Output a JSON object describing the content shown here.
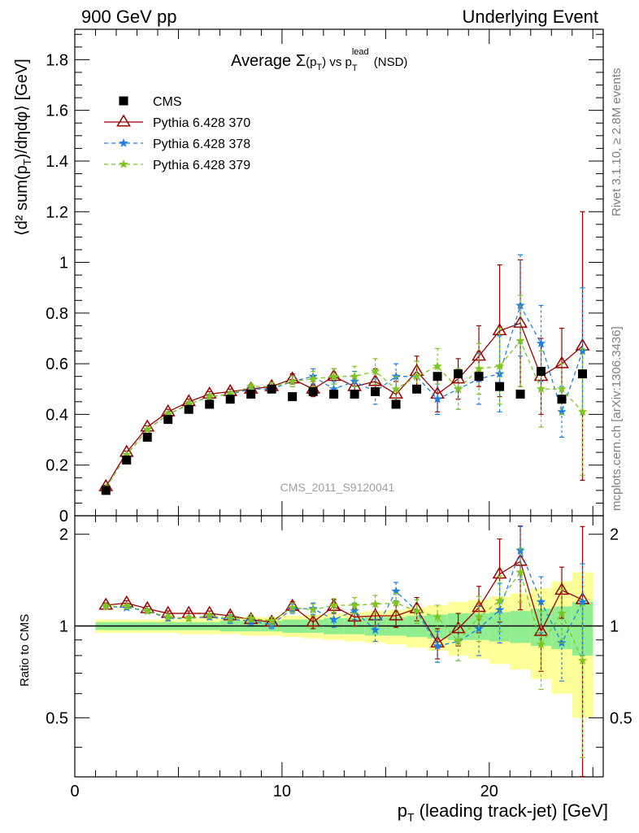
{
  "header": {
    "left": "900 GeV pp",
    "right": "Underlying Event"
  },
  "side": {
    "rivet": "Rivet 3.1.10, ≥ 2.8M events",
    "mcplots": "mcplots.cern.ch [arXiv:1306.3436]"
  },
  "watermark": "CMS_2011_S9120041",
  "title": {
    "prefix": "Average",
    "sigma": "Σ",
    "arg": "(p",
    "argsub": "T",
    "argclose": ")",
    "mid": " vs p",
    "sub": "T",
    "sup": "lead",
    "suffix": " (NSD)"
  },
  "ylabel_main": {
    "text": "⟨d² sum(p",
    "sub": "T",
    "rest": ")/dηdφ⟩ [GeV]"
  },
  "ylabel_ratio": "Ratio to CMS",
  "xlabel": {
    "p": "p",
    "sub": "T",
    "rest": " (leading track-jet) [GeV]"
  },
  "legend": [
    "CMS",
    "Pythia 6.428 370",
    "Pythia 6.428 378",
    "Pythia 6.428 379"
  ],
  "colors": {
    "cms": "#000000",
    "p370": "#9b0000",
    "p378": "#1f7fe0",
    "p379": "#7fc41f",
    "band_inner": "#90ee90",
    "band_outer": "#ffff99"
  },
  "chart_data": [
    {
      "type": "scatter",
      "panel": "main",
      "xlim": [
        0,
        25.5
      ],
      "ylim": [
        0,
        1.92
      ],
      "yticks": [
        0,
        0.2,
        0.4,
        0.6,
        0.8,
        1,
        1.2,
        1.4,
        1.6,
        1.8
      ],
      "yticklabels": [
        "0",
        "0.2",
        "0.4",
        "0.6",
        "0.8",
        "1",
        "1.2",
        "1.4",
        "1.6",
        "1.8"
      ],
      "x": [
        1.5,
        2.5,
        3.5,
        4.5,
        5.5,
        6.5,
        7.5,
        8.5,
        9.5,
        10.5,
        11.5,
        12.5,
        13.5,
        14.5,
        15.5,
        16.5,
        17.5,
        18.5,
        19.5,
        20.5,
        21.5,
        22.5,
        23.5,
        24.5
      ],
      "series": [
        {
          "name": "CMS",
          "values": [
            0.1,
            0.22,
            0.31,
            0.38,
            0.42,
            0.44,
            0.46,
            0.48,
            0.5,
            0.47,
            0.49,
            0.48,
            0.48,
            0.49,
            0.44,
            0.5,
            0.55,
            0.56,
            0.55,
            0.51,
            0.48,
            0.57,
            0.46,
            0.56
          ]
        },
        {
          "name": "Pythia 6.428 370",
          "values": [
            0.115,
            0.25,
            0.35,
            0.41,
            0.45,
            0.48,
            0.49,
            0.5,
            0.51,
            0.54,
            0.5,
            0.55,
            0.51,
            0.53,
            0.48,
            0.57,
            0.48,
            0.54,
            0.63,
            0.73,
            0.76,
            0.55,
            0.6,
            0.67
          ],
          "err": [
            0.005,
            0.005,
            0.005,
            0.01,
            0.01,
            0.01,
            0.01,
            0.01,
            0.015,
            0.02,
            0.03,
            0.03,
            0.04,
            0.05,
            0.05,
            0.06,
            0.07,
            0.08,
            0.12,
            0.26,
            0.25,
            0.15,
            0.14,
            0.53
          ]
        },
        {
          "name": "Pythia 6.428 378",
          "values": [
            0.11,
            0.24,
            0.34,
            0.4,
            0.44,
            0.47,
            0.48,
            0.5,
            0.5,
            0.53,
            0.55,
            0.5,
            0.53,
            0.49,
            0.55,
            0.55,
            0.46,
            0.5,
            0.54,
            0.56,
            0.83,
            0.68,
            0.41,
            0.65
          ],
          "err": [
            0.005,
            0.005,
            0.005,
            0.01,
            0.01,
            0.01,
            0.01,
            0.01,
            0.015,
            0.02,
            0.03,
            0.03,
            0.04,
            0.05,
            0.05,
            0.06,
            0.06,
            0.08,
            0.1,
            0.15,
            0.2,
            0.15,
            0.1,
            0.25
          ]
        },
        {
          "name": "Pythia 6.428 379",
          "values": [
            0.11,
            0.24,
            0.34,
            0.4,
            0.44,
            0.47,
            0.48,
            0.51,
            0.51,
            0.53,
            0.54,
            0.55,
            0.55,
            0.57,
            0.5,
            0.55,
            0.59,
            0.5,
            0.58,
            0.59,
            0.69,
            0.5,
            0.5,
            0.41
          ],
          "err": [
            0.005,
            0.005,
            0.005,
            0.01,
            0.01,
            0.01,
            0.01,
            0.01,
            0.015,
            0.02,
            0.03,
            0.03,
            0.04,
            0.05,
            0.05,
            0.06,
            0.07,
            0.08,
            0.1,
            0.15,
            0.18,
            0.15,
            0.1,
            0.25
          ]
        }
      ]
    },
    {
      "type": "scatter",
      "panel": "ratio",
      "xlim": [
        0,
        25.5
      ],
      "ylim": [
        0.32,
        2.3
      ],
      "log_y": true,
      "yticks": [
        0.5,
        1,
        2
      ],
      "yticklabels": [
        "0.5",
        "1",
        "2"
      ],
      "xticks": [
        0,
        10,
        20
      ],
      "xticklabels": [
        "0",
        "10",
        "20"
      ],
      "x": [
        1.5,
        2.5,
        3.5,
        4.5,
        5.5,
        6.5,
        7.5,
        8.5,
        9.5,
        10.5,
        11.5,
        12.5,
        13.5,
        14.5,
        15.5,
        16.5,
        17.5,
        18.5,
        19.5,
        20.5,
        21.5,
        22.5,
        23.5,
        24.5
      ],
      "band_inner": [
        0.03,
        0.03,
        0.03,
        0.03,
        0.03,
        0.03,
        0.04,
        0.04,
        0.04,
        0.05,
        0.05,
        0.06,
        0.06,
        0.07,
        0.07,
        0.08,
        0.09,
        0.1,
        0.1,
        0.11,
        0.12,
        0.14,
        0.16,
        0.2
      ],
      "band_outer": [
        0.05,
        0.05,
        0.05,
        0.05,
        0.06,
        0.06,
        0.06,
        0.07,
        0.07,
        0.08,
        0.09,
        0.1,
        0.11,
        0.12,
        0.13,
        0.15,
        0.17,
        0.2,
        0.22,
        0.25,
        0.28,
        0.33,
        0.4,
        0.5
      ],
      "series": [
        {
          "name": "Pythia 6.428 370",
          "values": [
            1.17,
            1.19,
            1.14,
            1.1,
            1.1,
            1.1,
            1.08,
            1.05,
            1.03,
            1.16,
            1.03,
            1.16,
            1.07,
            1.08,
            1.08,
            1.14,
            0.88,
            0.98,
            1.15,
            1.48,
            1.63,
            0.96,
            1.31,
            1.22
          ],
          "err": [
            0.02,
            0.02,
            0.02,
            0.02,
            0.02,
            0.02,
            0.03,
            0.03,
            0.03,
            0.04,
            0.05,
            0.06,
            0.07,
            0.08,
            0.09,
            0.1,
            0.1,
            0.12,
            0.2,
            0.45,
            0.5,
            0.25,
            0.25,
            0.9
          ]
        },
        {
          "name": "Pythia 6.428 378",
          "values": [
            1.16,
            1.15,
            1.12,
            1.06,
            1.06,
            1.07,
            1.05,
            1.04,
            1.01,
            1.14,
            1.14,
            1.05,
            1.12,
            0.97,
            1.3,
            1.12,
            0.86,
            0.89,
            0.98,
            1.13,
            1.77,
            1.2,
            0.88,
            1.2
          ],
          "err": [
            0.02,
            0.02,
            0.02,
            0.02,
            0.02,
            0.02,
            0.03,
            0.03,
            0.03,
            0.04,
            0.05,
            0.06,
            0.07,
            0.08,
            0.09,
            0.1,
            0.1,
            0.12,
            0.18,
            0.25,
            0.35,
            0.25,
            0.22,
            0.4
          ]
        },
        {
          "name": "Pythia 6.428 379",
          "values": [
            1.16,
            1.16,
            1.12,
            1.07,
            1.06,
            1.08,
            1.06,
            1.06,
            1.04,
            1.15,
            1.13,
            1.17,
            1.17,
            1.18,
            1.19,
            1.12,
            1.07,
            0.89,
            1.07,
            1.21,
            1.5,
            0.87,
            1.1,
            0.77
          ],
          "err": [
            0.02,
            0.02,
            0.02,
            0.02,
            0.02,
            0.02,
            0.03,
            0.03,
            0.03,
            0.04,
            0.05,
            0.06,
            0.07,
            0.08,
            0.09,
            0.1,
            0.1,
            0.12,
            0.18,
            0.25,
            0.3,
            0.25,
            0.22,
            0.4
          ]
        }
      ]
    }
  ]
}
